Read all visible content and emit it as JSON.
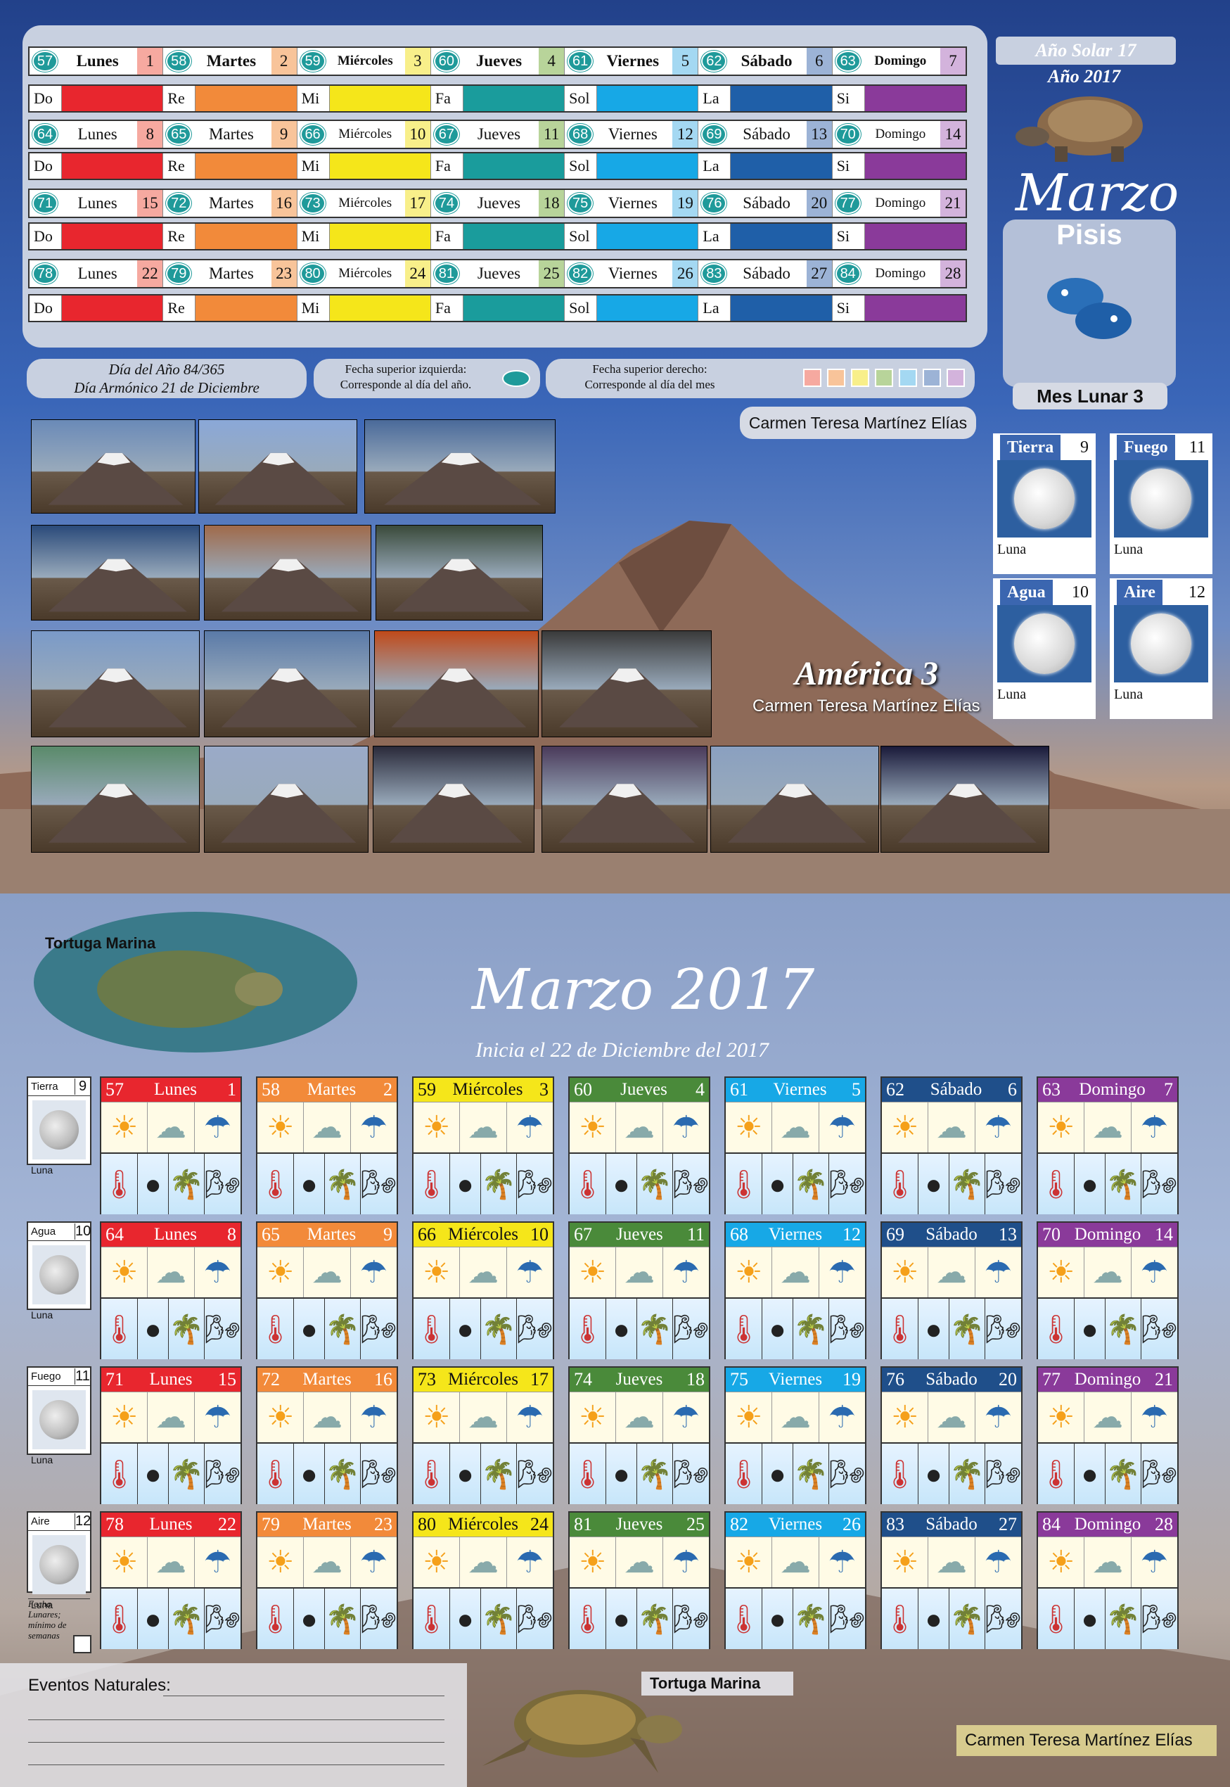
{
  "header": {
    "solar_year_label": "Año Solar",
    "solar_year_value": "17",
    "year_label": "Año 2017",
    "month": "Marzo",
    "sign": "Pisis",
    "lunar_month": "Mes Lunar 3"
  },
  "weeks": [
    {
      "days": [
        {
          "n": "57",
          "name": "Lunes",
          "d": "1"
        },
        {
          "n": "58",
          "name": "Martes",
          "d": "2"
        },
        {
          "n": "59",
          "name": "Miércoles",
          "d": "3"
        },
        {
          "n": "60",
          "name": "Jueves",
          "d": "4"
        },
        {
          "n": "61",
          "name": "Viernes",
          "d": "5"
        },
        {
          "n": "62",
          "name": "Sábado",
          "d": "6"
        },
        {
          "n": "63",
          "name": "Domingo",
          "d": "7"
        }
      ]
    },
    {
      "days": [
        {
          "n": "64",
          "name": "Lunes",
          "d": "8"
        },
        {
          "n": "65",
          "name": "Martes",
          "d": "9"
        },
        {
          "n": "66",
          "name": "Miércoles",
          "d": "10"
        },
        {
          "n": "67",
          "name": "Jueves",
          "d": "11"
        },
        {
          "n": "68",
          "name": "Viernes",
          "d": "12"
        },
        {
          "n": "69",
          "name": "Sábado",
          "d": "13"
        },
        {
          "n": "70",
          "name": "Domingo",
          "d": "14"
        }
      ]
    },
    {
      "days": [
        {
          "n": "71",
          "name": "Lunes",
          "d": "15"
        },
        {
          "n": "72",
          "name": "Martes",
          "d": "16"
        },
        {
          "n": "73",
          "name": "Miércoles",
          "d": "17"
        },
        {
          "n": "74",
          "name": "Jueves",
          "d": "18"
        },
        {
          "n": "75",
          "name": "Viernes",
          "d": "19"
        },
        {
          "n": "76",
          "name": "Sábado",
          "d": "20"
        },
        {
          "n": "77",
          "name": "Domingo",
          "d": "21"
        }
      ]
    },
    {
      "days": [
        {
          "n": "78",
          "name": "Lunes",
          "d": "22"
        },
        {
          "n": "79",
          "name": "Martes",
          "d": "23"
        },
        {
          "n": "80",
          "name": "Miércoles",
          "d": "24"
        },
        {
          "n": "81",
          "name": "Jueves",
          "d": "25"
        },
        {
          "n": "82",
          "name": "Viernes",
          "d": "26"
        },
        {
          "n": "83",
          "name": "Sábado",
          "d": "27"
        },
        {
          "n": "84",
          "name": "Domingo",
          "d": "28"
        }
      ]
    }
  ],
  "notes": [
    "Do",
    "Re",
    "Mi",
    "Fa",
    "Sol",
    "La",
    "Si"
  ],
  "note_colors": [
    "#e8262e",
    "#f28a3a",
    "#f5e61a",
    "#1a9c9c",
    "#17a8e6",
    "#1f5fa8",
    "#8a3a9a"
  ],
  "day_colors": [
    "#f6a9a0",
    "#f8c49a",
    "#f8ef8a",
    "#b8d49a",
    "#a4d8f2",
    "#9cb3d6",
    "#d3b3dc"
  ],
  "day_header_colors": [
    "#e8262e",
    "#f28a3a",
    "#f5e61a",
    "#4a8a3a",
    "#17a8e6",
    "#1f4f8a",
    "#8a3a9a"
  ],
  "info": {
    "day_of_year": "Día del Año 84/365",
    "harmonic_day": "Día Armónico 21 de Diciembre",
    "top_left_title": "Fecha superior izquierda:",
    "top_left_desc": "Corresponde al día del año.",
    "top_right_title": "Fecha superior derecho:",
    "top_right_desc": "Corresponde al día del mes",
    "author": "Carmen Teresa Martínez Elías"
  },
  "elements": [
    {
      "name": "Tierra",
      "num": "9",
      "label": "Luna"
    },
    {
      "name": "Fuego",
      "num": "11",
      "label": "Luna"
    },
    {
      "name": "Agua",
      "num": "10",
      "label": "Luna"
    },
    {
      "name": "Aire",
      "num": "12",
      "label": "Luna"
    }
  ],
  "photos_title": "América 3",
  "photos_author": "Carmen Teresa Martínez Elías",
  "bottom": {
    "title": "Marzo 2017",
    "subtitle": "Inicia el 22 de Diciembre del 2017",
    "turtle_label_top": "Tortuga Marina",
    "turtle_label_bottom": "Tortuga Marina",
    "events_label": "Eventos Naturales:",
    "author": "Carmen Teresa Martínez Elías",
    "side": [
      {
        "name": "Tierra",
        "num": "9",
        "label": "Luna"
      },
      {
        "name": "Agua",
        "num": "10",
        "label": "Luna"
      },
      {
        "name": "Fuego",
        "num": "11",
        "label": "Luna"
      },
      {
        "name": "Aire",
        "num": "12",
        "label": "Luna"
      }
    ],
    "lunar_note": "Fecha Lunares; mínimo de semanas"
  },
  "icons": {
    "sun": "☀",
    "cloud": "☁",
    "rain": "☂",
    "thermo": "🌡",
    "moon": "●",
    "palm": "🌴",
    "wind": "🌬"
  }
}
